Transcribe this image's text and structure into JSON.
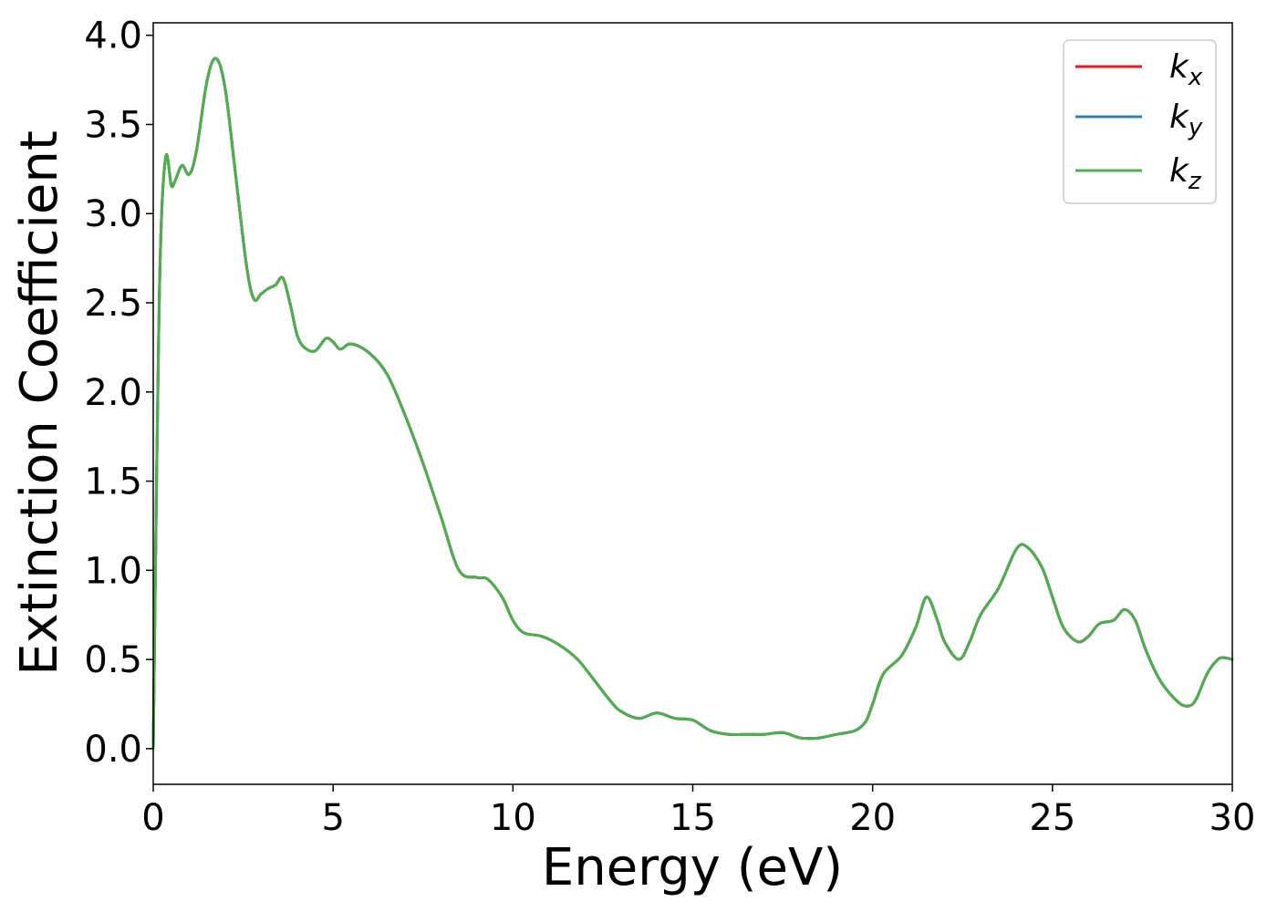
{
  "chart_data": {
    "type": "line",
    "title": "",
    "xlabel": "Energy (eV)",
    "ylabel": "Extinction Coefficient",
    "xlim": [
      0,
      30
    ],
    "ylim": [
      -0.2,
      4.07
    ],
    "grid": false,
    "legend_position": "top-right",
    "xticks": [
      0,
      5,
      10,
      15,
      20,
      25,
      30
    ],
    "xtick_labels": [
      "0",
      "5",
      "10",
      "15",
      "20",
      "25",
      "30"
    ],
    "yticks": [
      0.0,
      0.5,
      1.0,
      1.5,
      2.0,
      2.5,
      3.0,
      3.5,
      4.0
    ],
    "ytick_labels": [
      "0.0",
      "0.5",
      "1.0",
      "1.5",
      "2.0",
      "2.5",
      "3.0",
      "3.5",
      "4.0"
    ],
    "x": [
      0,
      0.1,
      0.2,
      0.35,
      0.5,
      0.6,
      0.8,
      1.0,
      1.2,
      1.5,
      1.75,
      2.0,
      2.3,
      2.6,
      2.8,
      3.0,
      3.2,
      3.4,
      3.6,
      3.8,
      4.0,
      4.2,
      4.5,
      4.8,
      5.0,
      5.2,
      5.5,
      6.0,
      6.5,
      7.0,
      7.5,
      8.0,
      8.5,
      9.0,
      9.3,
      9.7,
      10.0,
      10.3,
      10.8,
      11.3,
      11.8,
      12.2,
      12.7,
      13.0,
      13.5,
      14.0,
      14.5,
      15.0,
      15.5,
      16.0,
      16.5,
      17.0,
      17.5,
      18.0,
      18.5,
      19.0,
      19.5,
      19.8,
      20.0,
      20.3,
      20.8,
      21.2,
      21.5,
      21.8,
      22.0,
      22.4,
      22.7,
      23.0,
      23.5,
      24.0,
      24.3,
      24.7,
      25.0,
      25.3,
      25.7,
      26.0,
      26.3,
      26.7,
      27.0,
      27.3,
      27.6,
      28.0,
      28.5,
      28.8,
      29.0,
      29.3,
      29.6,
      29.8,
      30.0
    ],
    "series": [
      {
        "name": "k_x",
        "color": "#e41a1c",
        "values": [
          0.0,
          1.6,
          2.8,
          3.32,
          3.16,
          3.18,
          3.27,
          3.22,
          3.35,
          3.75,
          3.87,
          3.7,
          3.2,
          2.7,
          2.52,
          2.55,
          2.58,
          2.6,
          2.64,
          2.5,
          2.32,
          2.25,
          2.23,
          2.3,
          2.28,
          2.24,
          2.27,
          2.22,
          2.1,
          1.87,
          1.6,
          1.3,
          1.0,
          0.96,
          0.95,
          0.85,
          0.72,
          0.65,
          0.63,
          0.58,
          0.5,
          0.4,
          0.27,
          0.21,
          0.17,
          0.2,
          0.17,
          0.16,
          0.1,
          0.08,
          0.08,
          0.08,
          0.09,
          0.06,
          0.06,
          0.08,
          0.1,
          0.15,
          0.25,
          0.42,
          0.52,
          0.68,
          0.85,
          0.72,
          0.6,
          0.5,
          0.6,
          0.75,
          0.9,
          1.12,
          1.13,
          1.02,
          0.85,
          0.68,
          0.6,
          0.63,
          0.7,
          0.72,
          0.78,
          0.72,
          0.55,
          0.38,
          0.26,
          0.24,
          0.28,
          0.42,
          0.5,
          0.51,
          0.5
        ]
      },
      {
        "name": "k_y",
        "color": "#377eb8",
        "values": [
          0.0,
          1.6,
          2.8,
          3.32,
          3.16,
          3.18,
          3.27,
          3.22,
          3.35,
          3.75,
          3.87,
          3.7,
          3.2,
          2.7,
          2.52,
          2.55,
          2.58,
          2.6,
          2.64,
          2.5,
          2.32,
          2.25,
          2.23,
          2.3,
          2.28,
          2.24,
          2.27,
          2.22,
          2.1,
          1.87,
          1.6,
          1.3,
          1.0,
          0.96,
          0.95,
          0.85,
          0.72,
          0.65,
          0.63,
          0.58,
          0.5,
          0.4,
          0.27,
          0.21,
          0.17,
          0.2,
          0.17,
          0.16,
          0.1,
          0.08,
          0.08,
          0.08,
          0.09,
          0.06,
          0.06,
          0.08,
          0.1,
          0.15,
          0.25,
          0.42,
          0.52,
          0.68,
          0.85,
          0.72,
          0.6,
          0.5,
          0.6,
          0.75,
          0.9,
          1.12,
          1.13,
          1.02,
          0.85,
          0.68,
          0.6,
          0.63,
          0.7,
          0.72,
          0.78,
          0.72,
          0.55,
          0.38,
          0.26,
          0.24,
          0.28,
          0.42,
          0.5,
          0.51,
          0.5
        ]
      },
      {
        "name": "k_z",
        "color": "#4daf4a",
        "values": [
          0.0,
          1.6,
          2.8,
          3.32,
          3.16,
          3.18,
          3.27,
          3.22,
          3.35,
          3.75,
          3.87,
          3.7,
          3.2,
          2.7,
          2.52,
          2.55,
          2.58,
          2.6,
          2.64,
          2.5,
          2.32,
          2.25,
          2.23,
          2.3,
          2.28,
          2.24,
          2.27,
          2.22,
          2.1,
          1.87,
          1.6,
          1.3,
          1.0,
          0.96,
          0.95,
          0.85,
          0.72,
          0.65,
          0.63,
          0.58,
          0.5,
          0.4,
          0.27,
          0.21,
          0.17,
          0.2,
          0.17,
          0.16,
          0.1,
          0.08,
          0.08,
          0.08,
          0.09,
          0.06,
          0.06,
          0.08,
          0.1,
          0.15,
          0.25,
          0.42,
          0.52,
          0.68,
          0.85,
          0.72,
          0.6,
          0.5,
          0.6,
          0.75,
          0.9,
          1.12,
          1.13,
          1.02,
          0.85,
          0.68,
          0.6,
          0.63,
          0.7,
          0.72,
          0.78,
          0.72,
          0.55,
          0.38,
          0.26,
          0.24,
          0.28,
          0.42,
          0.5,
          0.51,
          0.5
        ]
      }
    ],
    "legend": [
      {
        "base": "k",
        "sub": "x",
        "color": "#e41a1c"
      },
      {
        "base": "k",
        "sub": "y",
        "color": "#377eb8"
      },
      {
        "base": "k",
        "sub": "z",
        "color": "#4daf4a"
      }
    ]
  }
}
